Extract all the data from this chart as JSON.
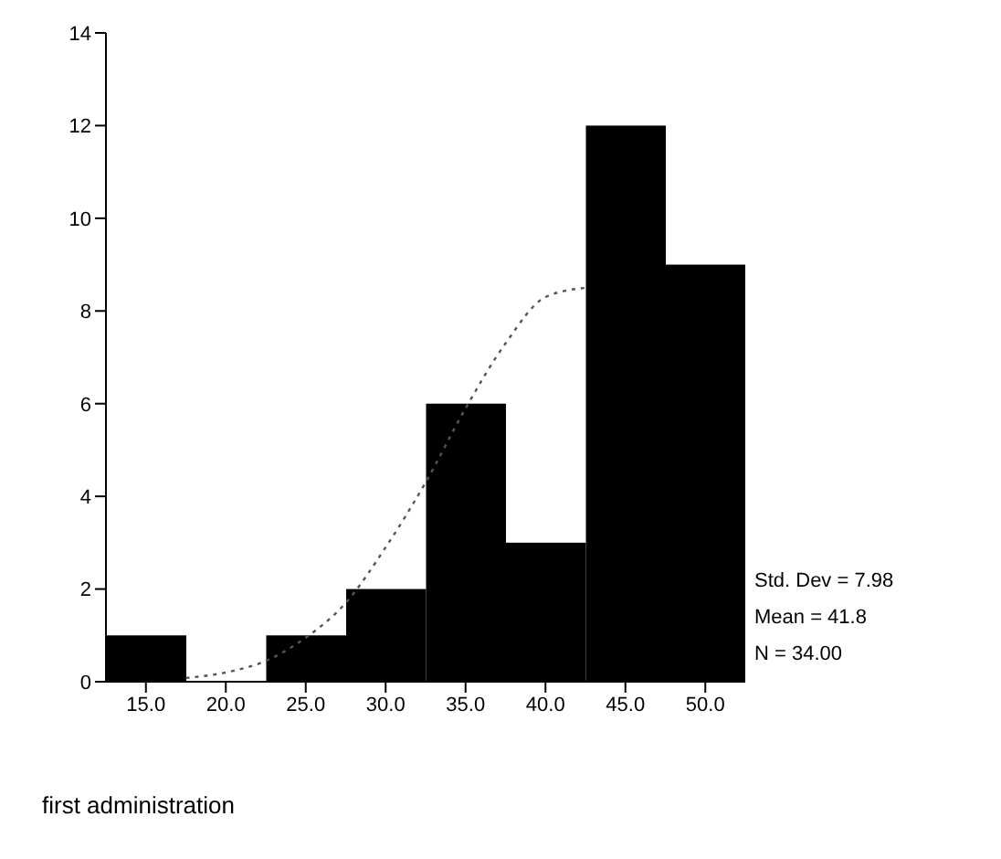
{
  "chart_data": {
    "type": "histogram",
    "xlabel": "first administration",
    "bins": [
      12.5,
      17.5,
      22.5,
      27.5,
      32.5,
      37.5,
      42.5,
      47.5,
      52.5
    ],
    "values": [
      1,
      0,
      1,
      2,
      6,
      3,
      12,
      9
    ],
    "color": "#000000",
    "series": [
      {
        "type": "line",
        "color": "#555555",
        "line_style": "dotted",
        "x": [
          17.5,
          20,
          22.5,
          25,
          27.5,
          30,
          32.5,
          35,
          37.5,
          40,
          42.5
        ],
        "values": [
          0.08,
          0.2,
          0.45,
          0.95,
          1.7,
          2.9,
          4.3,
          5.9,
          7.3,
          8.3,
          8.5
        ]
      }
    ],
    "xlim": [
      12.5,
      52.5
    ],
    "xticks": [
      {
        "value": 15,
        "label": "15.0"
      },
      {
        "value": 20,
        "label": "20.0"
      },
      {
        "value": 25,
        "label": "25.0"
      },
      {
        "value": 30,
        "label": "30.0"
      },
      {
        "value": 35,
        "label": "35.0"
      },
      {
        "value": 40,
        "label": "40.0"
      },
      {
        "value": 45,
        "label": "45.0"
      },
      {
        "value": 50,
        "label": "50.0"
      }
    ],
    "ylim": [
      0,
      14
    ],
    "yticks": [
      0,
      2,
      4,
      6,
      8,
      10,
      12,
      14
    ],
    "annotations": [
      "Std. Dev = 7.98",
      "Mean = 41.8",
      "N = 34.00"
    ]
  }
}
